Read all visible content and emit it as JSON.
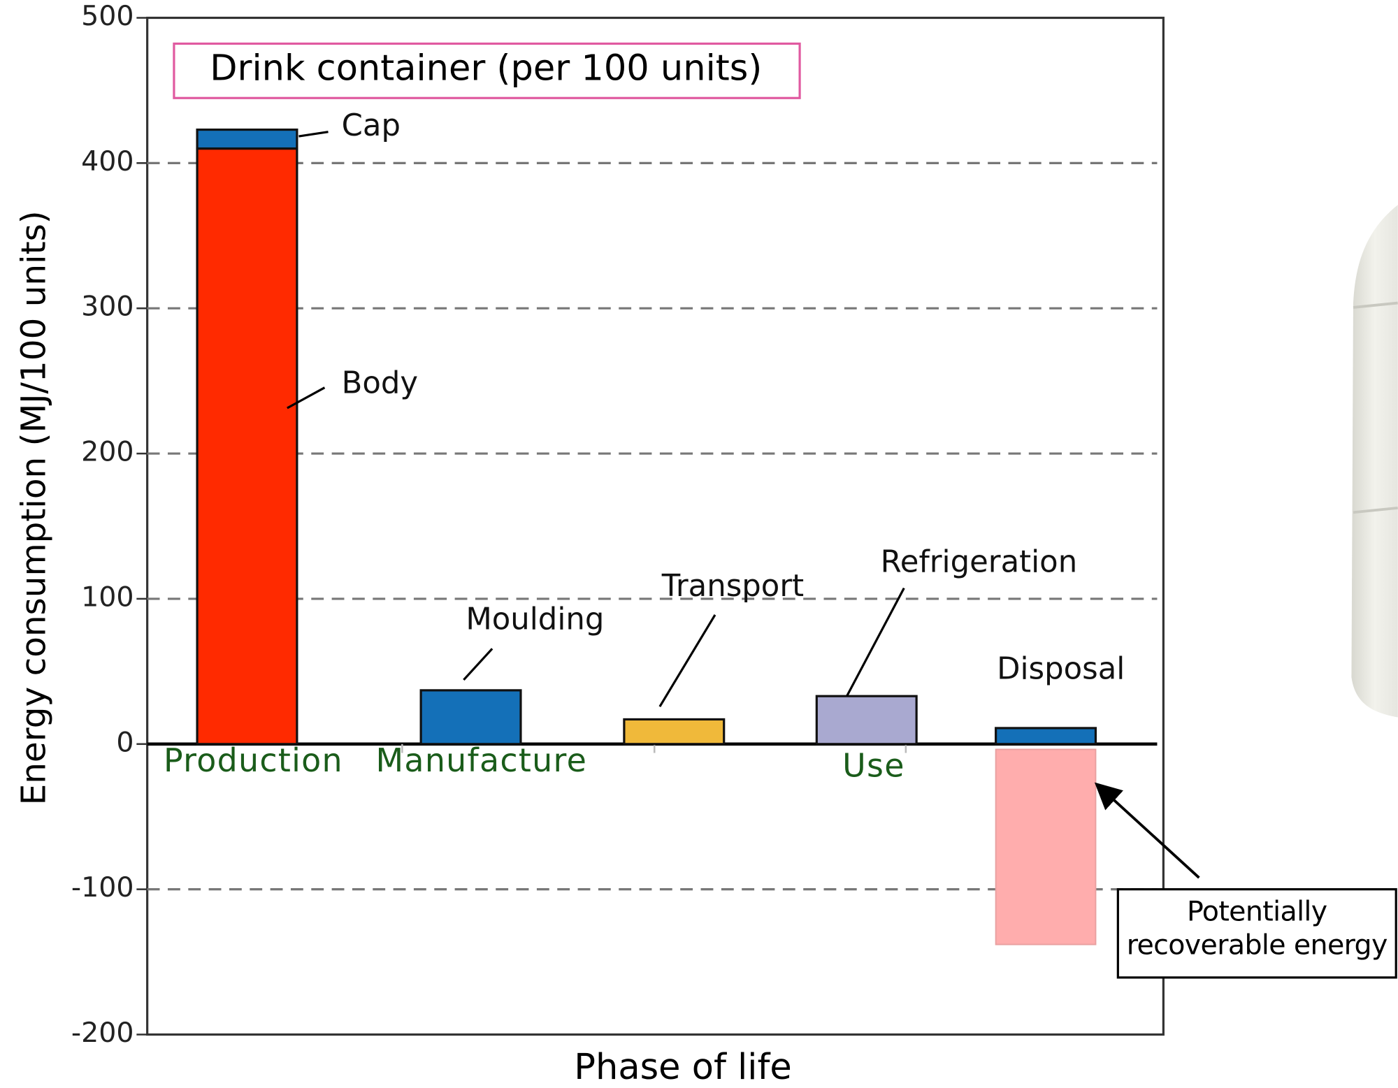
{
  "chart_data": {
    "type": "bar",
    "title": "Drink container (per 100 units)",
    "ylabel": "Energy consumption (MJ/100 units)",
    "xlabel": "Phase of life",
    "categories": [
      "Production",
      "Manufacture",
      null,
      "Use",
      null
    ],
    "series": [
      {
        "name": "Body",
        "color": "#ff2a00",
        "values": [
          410,
          null,
          null,
          null,
          null
        ]
      },
      {
        "name": "Cap",
        "color": "#1470b8",
        "values": [
          13,
          null,
          null,
          null,
          null
        ]
      },
      {
        "name": "Moulding",
        "color": "#1470b8",
        "values": [
          null,
          37,
          null,
          null,
          null
        ]
      },
      {
        "name": "Transport",
        "color": "#f0b93a",
        "values": [
          null,
          null,
          17,
          null,
          null
        ]
      },
      {
        "name": "Refrigeration",
        "color": "#a9a9d0",
        "values": [
          null,
          null,
          null,
          33,
          null
        ]
      },
      {
        "name": "Disposal",
        "color": "#1470b8",
        "values": [
          null,
          null,
          null,
          null,
          11
        ]
      },
      {
        "name": "Potentially recoverable energy",
        "color": "#ffadad",
        "values": [
          null,
          null,
          null,
          null,
          -138
        ]
      }
    ],
    "ylim": [
      -200,
      500
    ],
    "yticks": [
      -200,
      -100,
      0,
      100,
      200,
      300,
      400,
      500
    ],
    "grid": true
  }
}
